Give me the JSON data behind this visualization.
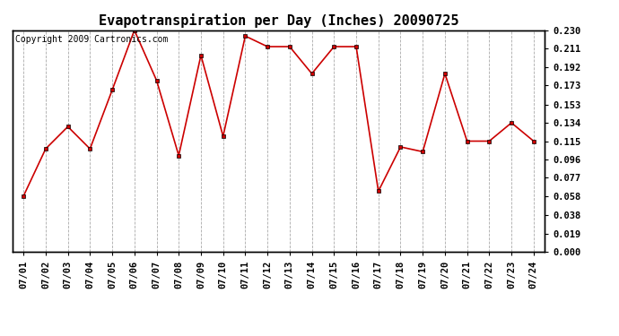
{
  "title": "Evapotranspiration per Day (Inches) 20090725",
  "copyright_text": "Copyright 2009 Cartronics.com",
  "dates": [
    "07/01",
    "07/02",
    "07/03",
    "07/04",
    "07/05",
    "07/06",
    "07/07",
    "07/08",
    "07/09",
    "07/10",
    "07/11",
    "07/12",
    "07/13",
    "07/14",
    "07/15",
    "07/16",
    "07/17",
    "07/18",
    "07/19",
    "07/20",
    "07/21",
    "07/22",
    "07/23",
    "07/24"
  ],
  "values": [
    0.058,
    0.107,
    0.13,
    0.107,
    0.168,
    0.23,
    0.178,
    0.1,
    0.204,
    0.12,
    0.224,
    0.213,
    0.213,
    0.185,
    0.213,
    0.213,
    0.063,
    0.109,
    0.104,
    0.185,
    0.115,
    0.115,
    0.134,
    0.115
  ],
  "line_color": "#cc0000",
  "marker": "s",
  "marker_size": 3,
  "ylim": [
    0.0,
    0.23
  ],
  "yticks": [
    0.0,
    0.019,
    0.038,
    0.058,
    0.077,
    0.096,
    0.115,
    0.134,
    0.153,
    0.173,
    0.192,
    0.211,
    0.23
  ],
  "background_color": "#ffffff",
  "grid_color": "#aaaaaa",
  "title_fontsize": 11,
  "tick_fontsize": 7.5,
  "copyright_fontsize": 7
}
